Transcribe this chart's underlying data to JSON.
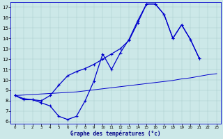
{
  "xlabel": "Graphe des températures (°c)",
  "bg_color": "#cce8e8",
  "line_color": "#0000cc",
  "line1_x": [
    0,
    1,
    2,
    3,
    4,
    5,
    6,
    7,
    8,
    9,
    10,
    11,
    12,
    13,
    14,
    15,
    16,
    17,
    18,
    19,
    20,
    21
  ],
  "line1_y": [
    8.5,
    8.2,
    8.1,
    8.0,
    8.5,
    9.5,
    10.4,
    10.8,
    11.1,
    11.5,
    12.0,
    12.5,
    13.0,
    13.8,
    15.5,
    17.3,
    17.3,
    16.3,
    14.0,
    15.3,
    13.9,
    12.1
  ],
  "line2_x": [
    0,
    1,
    2,
    3,
    4,
    5,
    6,
    7,
    8,
    9,
    10,
    11,
    12,
    13,
    14,
    15,
    16,
    17,
    18,
    19,
    20,
    21
  ],
  "line2_y": [
    8.5,
    8.1,
    8.1,
    7.8,
    7.5,
    6.5,
    6.2,
    6.5,
    8.0,
    9.9,
    12.5,
    11.0,
    12.6,
    13.9,
    15.7,
    17.3,
    17.3,
    16.3,
    14.0,
    15.3,
    13.9,
    12.1
  ],
  "line3_x": [
    0,
    1,
    2,
    3,
    4,
    5,
    6,
    7,
    8,
    9,
    10,
    11,
    12,
    13,
    14,
    15,
    16,
    17,
    18,
    19,
    20,
    21,
    22,
    23
  ],
  "line3_y": [
    8.5,
    8.55,
    8.6,
    8.65,
    8.7,
    8.75,
    8.8,
    8.85,
    8.95,
    9.05,
    9.15,
    9.25,
    9.35,
    9.45,
    9.55,
    9.65,
    9.75,
    9.85,
    9.95,
    10.1,
    10.2,
    10.35,
    10.5,
    10.6
  ],
  "ylim": [
    5.8,
    17.5
  ],
  "xlim": [
    -0.5,
    23.5
  ],
  "yticks": [
    6,
    7,
    8,
    9,
    10,
    11,
    12,
    13,
    14,
    15,
    16,
    17
  ],
  "xticks": [
    0,
    1,
    2,
    3,
    4,
    5,
    6,
    7,
    8,
    9,
    10,
    11,
    12,
    13,
    14,
    15,
    16,
    17,
    18,
    19,
    20,
    21,
    22,
    23
  ]
}
